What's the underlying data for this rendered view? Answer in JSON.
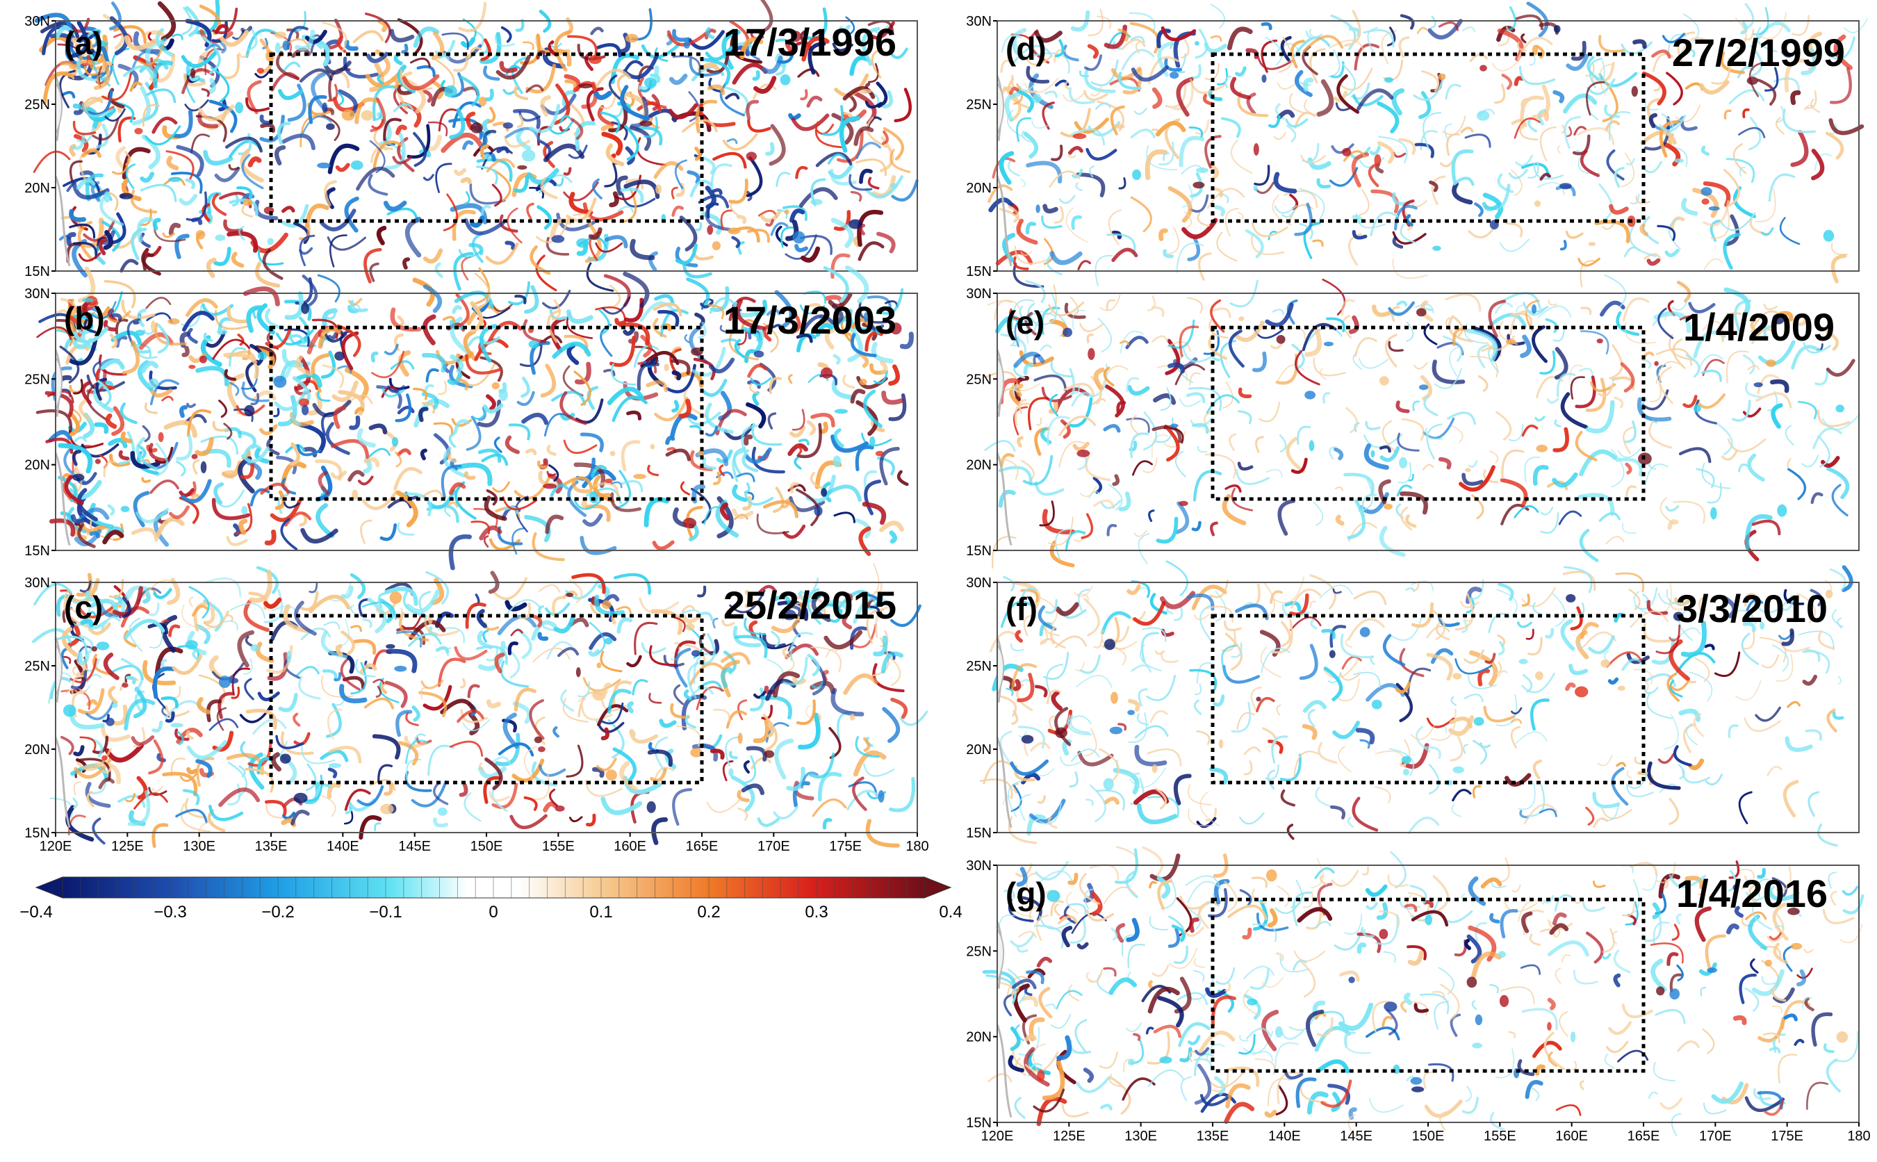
{
  "title": "",
  "colors": {
    "deep_negative": "#0a1a6e",
    "mid_negative": "#1f7fd6",
    "light_negative": "#34d2ee",
    "neutral": "#ffffff",
    "light_positive": "#f6a64a",
    "mid_positive": "#e0301e",
    "deep_positive": "#6f0f1a",
    "box": "#000000",
    "frame": "#555555",
    "coast": "#b9b9b9"
  },
  "axes": {
    "lat_labels": [
      "30N",
      "25N",
      "20N",
      "15N"
    ],
    "lon_labels": [
      "120E",
      "125E",
      "130E",
      "135E",
      "140E",
      "145E",
      "150E",
      "155E",
      "160E",
      "165E",
      "170E",
      "175E",
      "180"
    ],
    "lon_range": [
      120,
      180
    ],
    "lat_range": [
      15,
      30
    ]
  },
  "panels": [
    {
      "id": "a",
      "label": "(a)",
      "date": "17/3/1996",
      "activity": 1.0,
      "box": {
        "lon": [
          135,
          165
        ],
        "lat": [
          18,
          28
        ]
      }
    },
    {
      "id": "b",
      "label": "(b)",
      "date": "17/3/2003",
      "activity": 1.0,
      "box": {
        "lon": [
          135,
          165
        ],
        "lat": [
          18,
          28
        ]
      }
    },
    {
      "id": "c",
      "label": "(c)",
      "date": "25/2/2015",
      "activity": 0.8,
      "box": {
        "lon": [
          135,
          165
        ],
        "lat": [
          18,
          28
        ]
      }
    },
    {
      "id": "d",
      "label": "(d)",
      "date": "27/2/1999",
      "activity": 0.55,
      "box": {
        "lon": [
          135,
          165
        ],
        "lat": [
          18,
          28
        ]
      }
    },
    {
      "id": "e",
      "label": "(e)",
      "date": "1/4/2009",
      "activity": 0.45,
      "box": {
        "lon": [
          135,
          165
        ],
        "lat": [
          18,
          28
        ]
      }
    },
    {
      "id": "f",
      "label": "(f)",
      "date": "3/3/2010",
      "activity": 0.4,
      "box": {
        "lon": [
          135,
          165
        ],
        "lat": [
          18,
          28
        ]
      }
    },
    {
      "id": "g",
      "label": "(g)",
      "date": "1/4/2016",
      "activity": 0.45,
      "box": {
        "lon": [
          135,
          165
        ],
        "lat": [
          18,
          28
        ]
      }
    }
  ],
  "colorbar": {
    "ticks": [
      "−0.4",
      "−0.3",
      "−0.2",
      "−0.1",
      "0",
      "0.1",
      "0.2",
      "0.3",
      "0.4"
    ],
    "min": -0.4,
    "max": 0.4
  }
}
